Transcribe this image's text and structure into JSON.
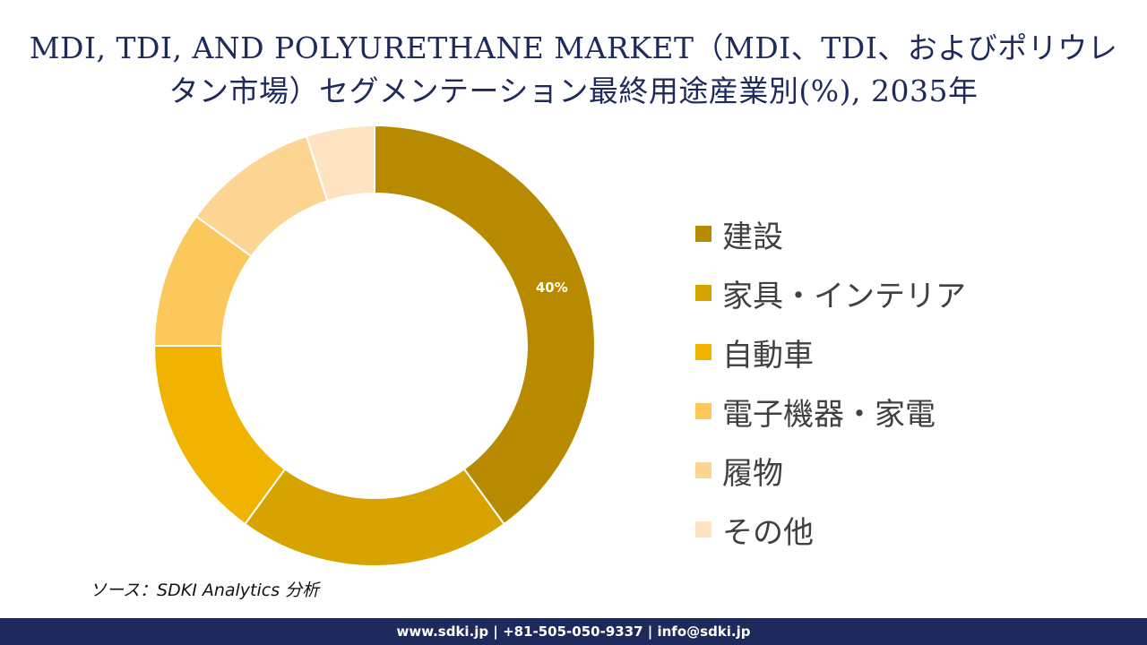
{
  "chart_data": {
    "type": "pie",
    "title": "MDI, TDI, AND POLYURETHANE MARKET（MDI、TDI、およびポリウレタン市場）セグメンテーション最終用途産業別(%), 2035年",
    "categories": [
      "建設",
      "家具・インテリア",
      "自動車",
      "電子機器・家電",
      "履物",
      "その他"
    ],
    "values": [
      40,
      20,
      15,
      10,
      10,
      5
    ],
    "data_labels": [
      "40%",
      "",
      "",
      "",
      "",
      ""
    ],
    "colors": [
      "#B88A00",
      "#D6A300",
      "#F0B400",
      "#FCC85C",
      "#FDD593",
      "#FDE3C2"
    ],
    "donut": true,
    "legend_position": "right"
  },
  "source": "ソース：SDKI Analytics 分析",
  "footer": "www.sdki.jp | +81-505-050-9337 | info@sdki.jp"
}
